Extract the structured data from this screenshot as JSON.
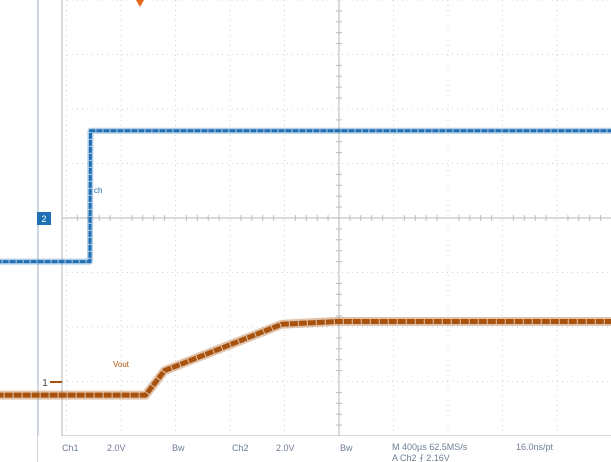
{
  "chart_data": {
    "type": "line",
    "title": "",
    "xlabel": "",
    "ylabel": "",
    "grid": true,
    "x_divisions": 10,
    "y_divisions": 8,
    "timebase_per_div_us": 400,
    "series": [
      {
        "name": "",
        "channel": "2",
        "marker_text": "2",
        "color": "#1f6fb5",
        "volts_per_div": 2.0,
        "ground_marker_div": -0.8,
        "points_div": [
          [
            -6.3,
            -0.8
          ],
          [
            -4.57,
            -0.8
          ],
          [
            -4.56,
            1.6
          ],
          [
            6.6,
            1.6
          ]
        ]
      },
      {
        "name": "Vout",
        "channel": "1",
        "marker_text": "1",
        "color": "#a8520e",
        "volts_per_div": 2.0,
        "ground_marker_div": -3.25,
        "points_div": [
          [
            -6.3,
            -3.25
          ],
          [
            -3.55,
            -3.25
          ],
          [
            -3.2,
            -2.8
          ],
          [
            -1.05,
            -1.95
          ],
          [
            -0.05,
            -1.9
          ],
          [
            6.6,
            -1.9
          ]
        ]
      }
    ],
    "trigger_marker_color": "#e2671d"
  },
  "labels": {
    "vout": "Vout",
    "ch2_small": "ch"
  },
  "footer": {
    "ch1": "Ch1",
    "ch1_scale": "2.0V",
    "bw1": "Bw",
    "ch2": "Ch2",
    "ch2_scale": "2.0V",
    "bw2": "Bw",
    "timebase": "M 400µs 62.5MS/s",
    "record": "16.0ns/pt",
    "trigger": "A  Ch2  ⨍  2.16V"
  }
}
